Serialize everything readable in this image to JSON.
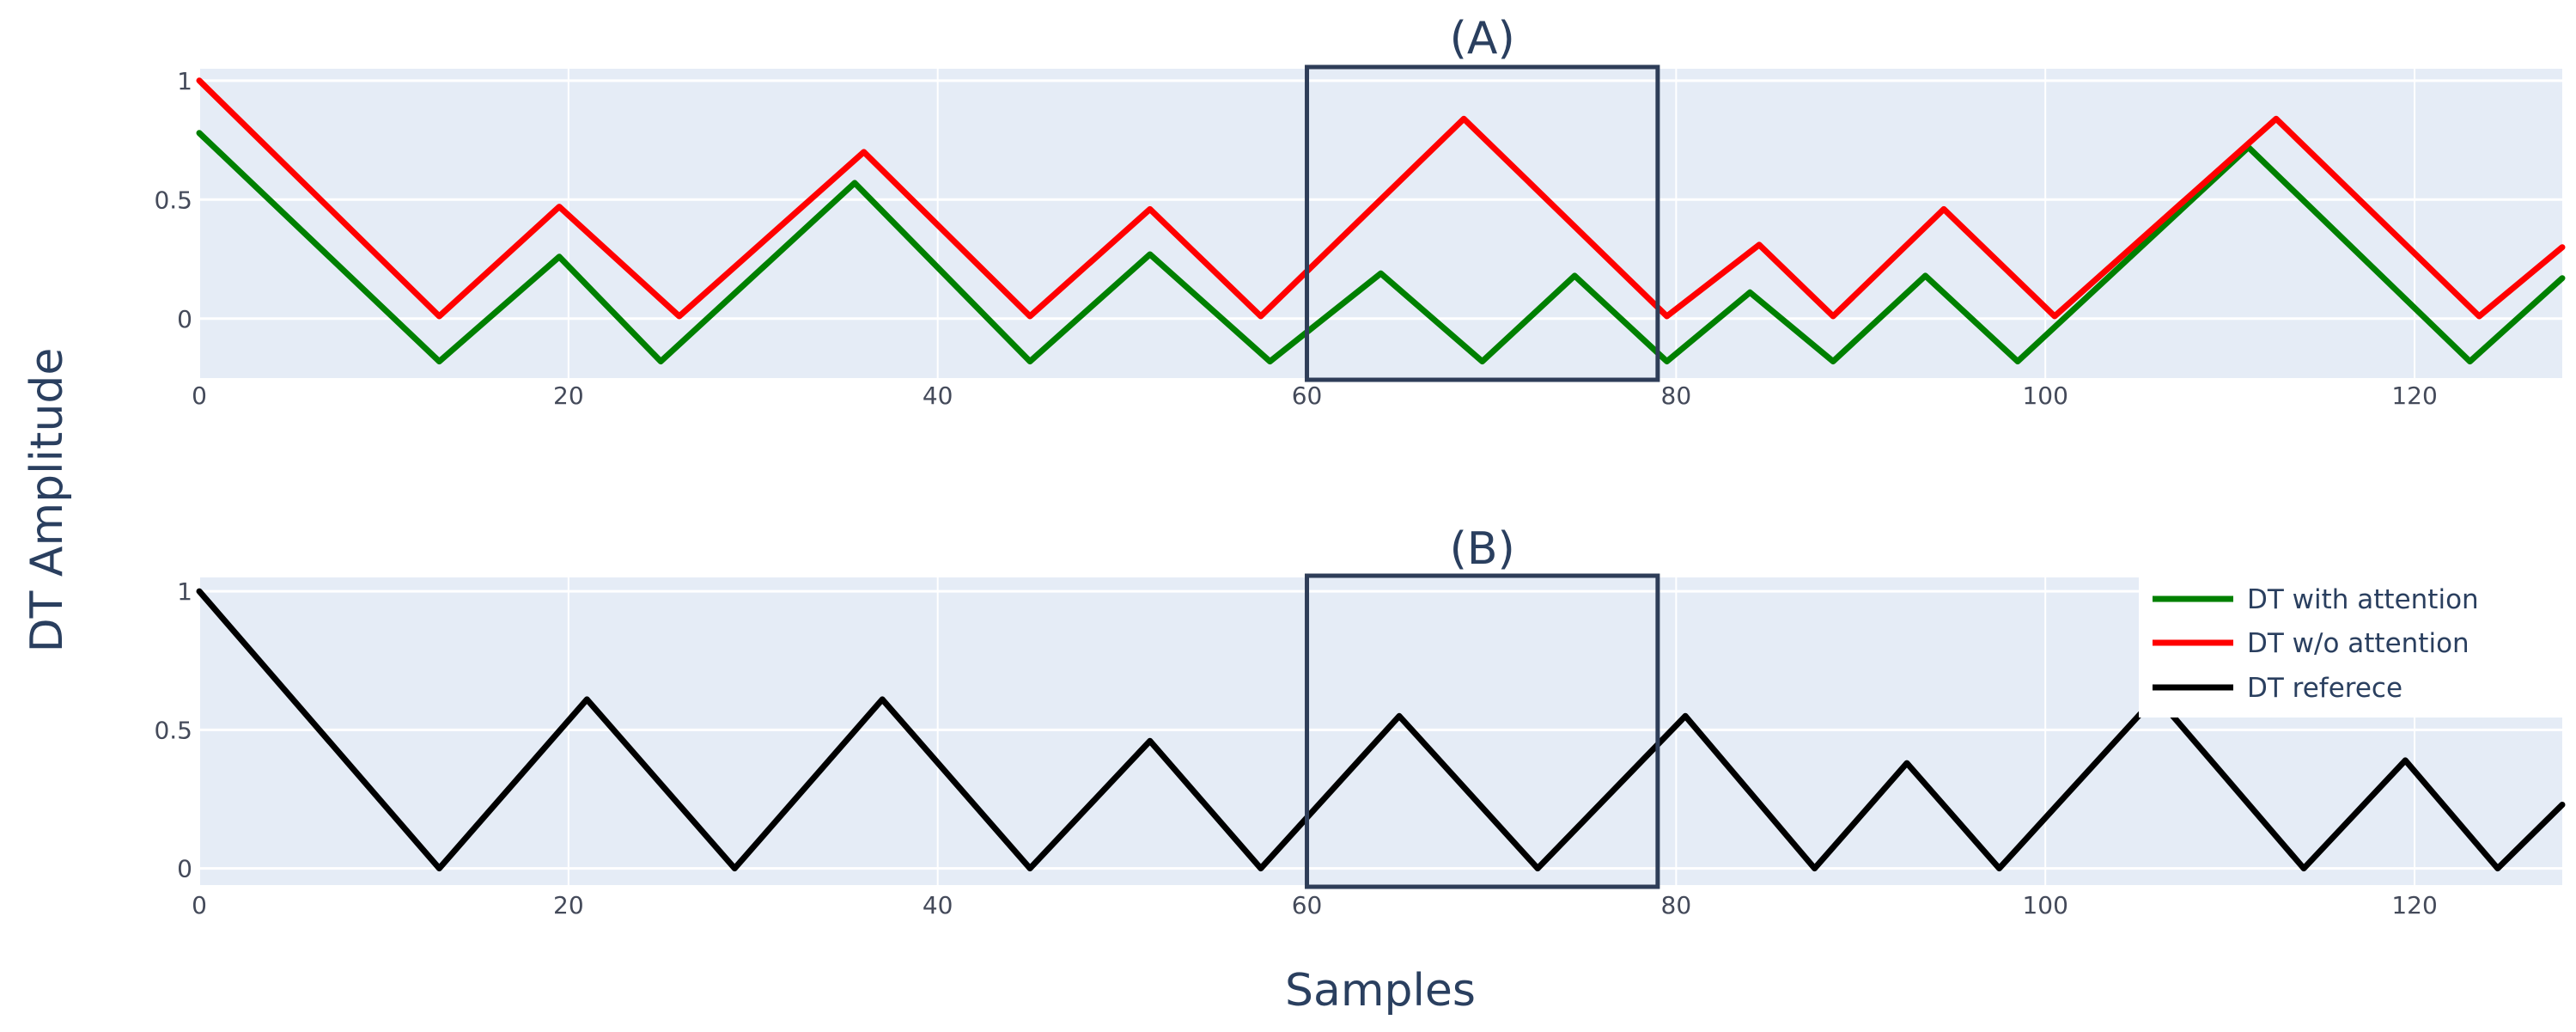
{
  "figure": {
    "ylabel": "DT Amplitude",
    "xlabel": "Samples"
  },
  "legend": {
    "placement": "right",
    "items": [
      {
        "label": "DT with attention",
        "color": "#008000"
      },
      {
        "label": "DT w/o attention",
        "color": "#ff0000"
      },
      {
        "label": "DT referece",
        "color": "#000000"
      }
    ]
  },
  "chart_data": [
    {
      "type": "line",
      "title": "(A)",
      "xlim": [
        0,
        128
      ],
      "ylim": [
        -0.25,
        1.05
      ],
      "xticks": [
        0,
        20,
        40,
        60,
        80,
        100,
        120
      ],
      "yticks": [
        0,
        0.5,
        1
      ],
      "ytick_labels": [
        "0",
        "0.5",
        "1"
      ],
      "grid": true,
      "highlight_box": {
        "x": [
          60,
          79
        ],
        "color": "#2e3d58"
      },
      "series": [
        {
          "legend_ref": 0,
          "color": "#008000",
          "points": [
            [
              0,
              0.78
            ],
            [
              13,
              -0.18
            ],
            [
              19.5,
              0.26
            ],
            [
              25,
              -0.18
            ],
            [
              35.5,
              0.57
            ],
            [
              45,
              -0.18
            ],
            [
              51.5,
              0.27
            ],
            [
              58,
              -0.18
            ],
            [
              64,
              0.19
            ],
            [
              69.5,
              -0.18
            ],
            [
              74.5,
              0.18
            ],
            [
              79.5,
              -0.18
            ],
            [
              84,
              0.11
            ],
            [
              88.5,
              -0.18
            ],
            [
              93.5,
              0.18
            ],
            [
              98.5,
              -0.18
            ],
            [
              111,
              0.72
            ],
            [
              123,
              -0.18
            ],
            [
              128,
              0.17
            ]
          ]
        },
        {
          "legend_ref": 1,
          "color": "#ff0000",
          "points": [
            [
              0,
              1.0
            ],
            [
              13,
              0.01
            ],
            [
              19.5,
              0.47
            ],
            [
              26,
              0.01
            ],
            [
              36,
              0.7
            ],
            [
              45,
              0.01
            ],
            [
              51.5,
              0.46
            ],
            [
              57.5,
              0.01
            ],
            [
              68.5,
              0.84
            ],
            [
              79.5,
              0.01
            ],
            [
              84.5,
              0.31
            ],
            [
              88.5,
              0.01
            ],
            [
              94.5,
              0.46
            ],
            [
              100.5,
              0.01
            ],
            [
              112.5,
              0.84
            ],
            [
              123.5,
              0.01
            ],
            [
              128,
              0.3
            ]
          ]
        }
      ]
    },
    {
      "type": "line",
      "title": "(B)",
      "xlim": [
        0,
        128
      ],
      "ylim": [
        -0.06,
        1.05
      ],
      "xticks": [
        0,
        20,
        40,
        60,
        80,
        100,
        120
      ],
      "yticks": [
        0,
        0.5,
        1
      ],
      "ytick_labels": [
        "0",
        "0.5",
        "1"
      ],
      "grid": true,
      "highlight_box": {
        "x": [
          60,
          79
        ],
        "color": "#2e3d58"
      },
      "series": [
        {
          "legend_ref": 2,
          "color": "#000000",
          "points": [
            [
              0,
              1.0
            ],
            [
              13,
              0.0
            ],
            [
              21,
              0.61
            ],
            [
              29,
              0.0
            ],
            [
              37,
              0.61
            ],
            [
              45,
              0.0
            ],
            [
              51.5,
              0.46
            ],
            [
              57.5,
              0.0
            ],
            [
              65,
              0.55
            ],
            [
              72.5,
              0.0
            ],
            [
              80.5,
              0.55
            ],
            [
              87.5,
              0.0
            ],
            [
              92.5,
              0.38
            ],
            [
              97.5,
              0.0
            ],
            [
              106,
              0.62
            ],
            [
              114,
              0.0
            ],
            [
              119.5,
              0.39
            ],
            [
              124.5,
              0.0
            ],
            [
              128,
              0.23
            ]
          ]
        }
      ]
    }
  ]
}
